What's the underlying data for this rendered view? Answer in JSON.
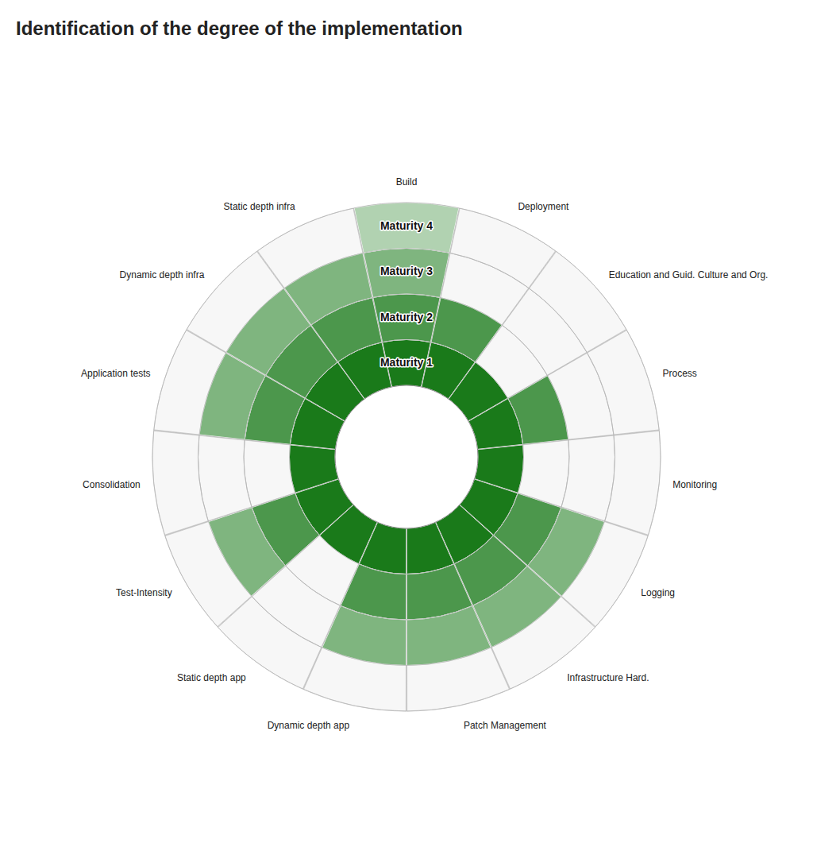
{
  "chart_data": {
    "type": "radial_bar",
    "title": "Identification of the degree of the implementation",
    "categories": [
      "Build",
      "Deployment",
      "Education and Guid. Culture and Org.",
      "Process",
      "Monitoring",
      "Logging",
      "Infrastructure Hard.",
      "Patch Management",
      "Dynamic depth app",
      "Static depth app",
      "Test-Intensity",
      "Consolidation",
      "Application tests",
      "Dynamic depth infra",
      "Static depth infra"
    ],
    "values": [
      4,
      2,
      1,
      2,
      1,
      3,
      3,
      3,
      3,
      1,
      3,
      1,
      3,
      3,
      3
    ],
    "color": "#1a7a1a",
    "ylim": [
      0,
      4
    ],
    "yticks": [
      {
        "value": 1,
        "label": "Maturity 1"
      },
      {
        "value": 2,
        "label": "Maturity 2"
      },
      {
        "value": 3,
        "label": "Maturity 3"
      },
      {
        "value": 4,
        "label": "Maturity 4"
      }
    ],
    "grid": true
  }
}
